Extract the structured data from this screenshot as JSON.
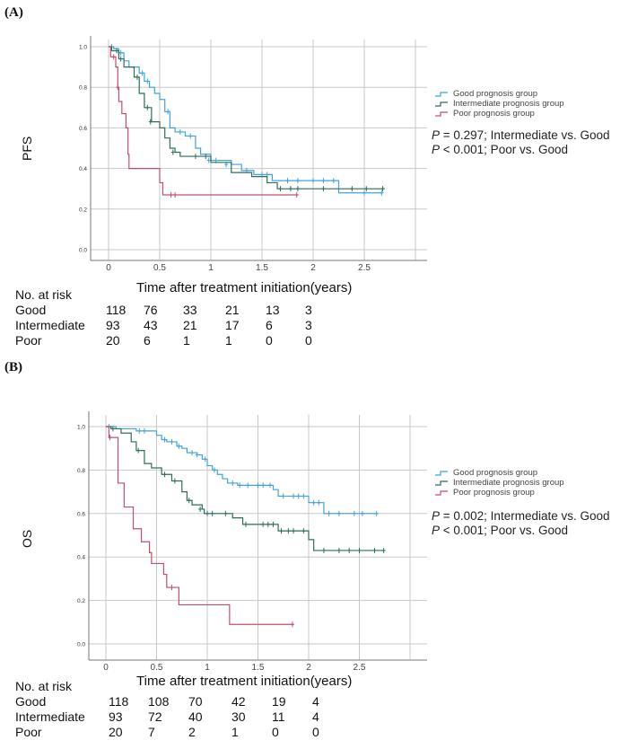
{
  "panels": [
    {
      "label": "(A)"
    },
    {
      "label": "(B)"
    }
  ],
  "chart_data": [
    {
      "type": "line",
      "subtype": "kaplan-meier step",
      "ylabel": "PFS",
      "xlabel": "Time after treatment initiation(years)",
      "xlim": [
        0,
        3
      ],
      "ylim": [
        0,
        1
      ],
      "xticks": [
        "0",
        "0.5",
        "1",
        "1.5",
        "2",
        "2.5"
      ],
      "yticks": [
        "0.0",
        "0.2",
        "0.4",
        "0.6",
        "0.8",
        "1.0"
      ],
      "grid": true,
      "legend_position": "right",
      "series": [
        {
          "name": "Good prognosis group",
          "color": "#3fa2df",
          "steps": [
            [
              0,
              1
            ],
            [
              0.05,
              0.99
            ],
            [
              0.1,
              0.97
            ],
            [
              0.15,
              0.93
            ],
            [
              0.2,
              0.9
            ],
            [
              0.3,
              0.87
            ],
            [
              0.35,
              0.83
            ],
            [
              0.4,
              0.8
            ],
            [
              0.45,
              0.77
            ],
            [
              0.5,
              0.74
            ],
            [
              0.55,
              0.68
            ],
            [
              0.6,
              0.6
            ],
            [
              0.65,
              0.58
            ],
            [
              0.75,
              0.56
            ],
            [
              0.85,
              0.5
            ],
            [
              0.9,
              0.47
            ],
            [
              1.0,
              0.44
            ],
            [
              1.2,
              0.42
            ],
            [
              1.3,
              0.39
            ],
            [
              1.42,
              0.37
            ],
            [
              1.6,
              0.34
            ],
            [
              2.25,
              0.28
            ],
            [
              2.68,
              0.28
            ]
          ],
          "censored": [
            [
              0.03,
              1
            ],
            [
              0.12,
              0.97
            ],
            [
              0.33,
              0.87
            ],
            [
              0.38,
              0.83
            ],
            [
              0.58,
              0.68
            ],
            [
              0.7,
              0.58
            ],
            [
              0.8,
              0.56
            ],
            [
              0.98,
              0.44
            ],
            [
              1.05,
              0.44
            ],
            [
              1.15,
              0.42
            ],
            [
              1.35,
              0.39
            ],
            [
              1.5,
              0.37
            ],
            [
              1.55,
              0.37
            ],
            [
              1.75,
              0.34
            ],
            [
              1.85,
              0.34
            ],
            [
              2.0,
              0.34
            ],
            [
              2.1,
              0.34
            ],
            [
              2.2,
              0.34
            ],
            [
              2.5,
              0.28
            ],
            [
              2.67,
              0.28
            ]
          ]
        },
        {
          "name": "Intermediate prognosis group",
          "color": "#2c6e5c",
          "steps": [
            [
              0,
              1
            ],
            [
              0.03,
              0.98
            ],
            [
              0.1,
              0.94
            ],
            [
              0.15,
              0.9
            ],
            [
              0.25,
              0.85
            ],
            [
              0.3,
              0.77
            ],
            [
              0.35,
              0.7
            ],
            [
              0.42,
              0.63
            ],
            [
              0.5,
              0.6
            ],
            [
              0.55,
              0.55
            ],
            [
              0.6,
              0.5
            ],
            [
              0.65,
              0.48
            ],
            [
              0.7,
              0.46
            ],
            [
              1.0,
              0.43
            ],
            [
              1.2,
              0.38
            ],
            [
              1.4,
              0.36
            ],
            [
              1.55,
              0.33
            ],
            [
              1.65,
              0.3
            ],
            [
              2.7,
              0.3
            ]
          ],
          "censored": [
            [
              0.08,
              0.98
            ],
            [
              0.12,
              0.94
            ],
            [
              0.28,
              0.85
            ],
            [
              0.38,
              0.7
            ],
            [
              0.41,
              0.63
            ],
            [
              0.63,
              0.48
            ],
            [
              0.85,
              0.46
            ],
            [
              0.95,
              0.46
            ],
            [
              1.68,
              0.3
            ],
            [
              1.78,
              0.3
            ],
            [
              1.85,
              0.3
            ],
            [
              2.1,
              0.3
            ],
            [
              2.38,
              0.3
            ],
            [
              2.52,
              0.3
            ],
            [
              2.68,
              0.3
            ]
          ]
        },
        {
          "name": "Poor prognosis group",
          "color": "#c0506a",
          "steps": [
            [
              0,
              1
            ],
            [
              0.02,
              0.95
            ],
            [
              0.07,
              0.9
            ],
            [
              0.09,
              0.8
            ],
            [
              0.1,
              0.73
            ],
            [
              0.13,
              0.67
            ],
            [
              0.17,
              0.6
            ],
            [
              0.19,
              0.47
            ],
            [
              0.2,
              0.4
            ],
            [
              0.5,
              0.33
            ],
            [
              0.53,
              0.27
            ],
            [
              1.85,
              0.27
            ]
          ],
          "censored": [
            [
              0.05,
              0.95
            ],
            [
              0.09,
              0.8
            ],
            [
              0.61,
              0.27
            ],
            [
              0.65,
              0.27
            ],
            [
              1.84,
              0.27
            ]
          ]
        }
      ],
      "annotations": [
        {
          "p_symbol": "P",
          "text": " = 0.297; Intermediate vs. Good"
        },
        {
          "p_symbol": "P",
          "text": " < 0.001; Poor vs. Good"
        }
      ],
      "risk_table": {
        "title": "No. at risk",
        "rows": [
          {
            "group": "Good",
            "values": [
              "118",
              "76",
              "33",
              "21",
              "13",
              "3"
            ]
          },
          {
            "group": "Intermediate",
            "values": [
              "93",
              "43",
              "21",
              "17",
              "6",
              "3"
            ]
          },
          {
            "group": "Poor",
            "values": [
              "20",
              "6",
              "1",
              "1",
              "0",
              "0"
            ]
          }
        ]
      }
    },
    {
      "type": "line",
      "subtype": "kaplan-meier step",
      "ylabel": "OS",
      "xlabel": "Time after treatment initiation(years)",
      "xlim": [
        0,
        3
      ],
      "ylim": [
        0,
        1
      ],
      "xticks": [
        "0",
        "0.5",
        "1",
        "1.5",
        "2",
        "2.5"
      ],
      "yticks": [
        "0.0",
        "0.2",
        "0.4",
        "0.6",
        "0.8",
        "1.0"
      ],
      "grid": true,
      "legend_position": "right",
      "series": [
        {
          "name": "Good prognosis group",
          "color": "#3fa2df",
          "steps": [
            [
              0,
              1
            ],
            [
              0.1,
              0.99
            ],
            [
              0.3,
              0.98
            ],
            [
              0.5,
              0.96
            ],
            [
              0.55,
              0.94
            ],
            [
              0.6,
              0.93
            ],
            [
              0.7,
              0.91
            ],
            [
              0.75,
              0.9
            ],
            [
              0.8,
              0.88
            ],
            [
              0.9,
              0.87
            ],
            [
              0.95,
              0.85
            ],
            [
              1.0,
              0.82
            ],
            [
              1.05,
              0.8
            ],
            [
              1.1,
              0.78
            ],
            [
              1.15,
              0.76
            ],
            [
              1.2,
              0.74
            ],
            [
              1.3,
              0.73
            ],
            [
              1.65,
              0.71
            ],
            [
              1.7,
              0.68
            ],
            [
              2.0,
              0.65
            ],
            [
              2.15,
              0.6
            ],
            [
              2.68,
              0.6
            ]
          ],
          "censored": [
            [
              0.03,
              1
            ],
            [
              0.33,
              0.98
            ],
            [
              0.38,
              0.98
            ],
            [
              0.58,
              0.94
            ],
            [
              0.65,
              0.93
            ],
            [
              0.72,
              0.91
            ],
            [
              0.85,
              0.88
            ],
            [
              0.9,
              0.87
            ],
            [
              0.98,
              0.85
            ],
            [
              1.07,
              0.8
            ],
            [
              1.25,
              0.74
            ],
            [
              1.32,
              0.73
            ],
            [
              1.4,
              0.73
            ],
            [
              1.5,
              0.73
            ],
            [
              1.55,
              0.73
            ],
            [
              1.62,
              0.73
            ],
            [
              1.75,
              0.68
            ],
            [
              1.85,
              0.68
            ],
            [
              1.9,
              0.68
            ],
            [
              1.95,
              0.68
            ],
            [
              2.05,
              0.65
            ],
            [
              2.1,
              0.65
            ],
            [
              2.2,
              0.6
            ],
            [
              2.3,
              0.6
            ],
            [
              2.45,
              0.6
            ],
            [
              2.53,
              0.6
            ],
            [
              2.67,
              0.6
            ]
          ]
        },
        {
          "name": "Intermediate prognosis group",
          "color": "#2c6e5c",
          "steps": [
            [
              0,
              1
            ],
            [
              0.05,
              0.99
            ],
            [
              0.15,
              0.97
            ],
            [
              0.25,
              0.93
            ],
            [
              0.3,
              0.89
            ],
            [
              0.38,
              0.83
            ],
            [
              0.45,
              0.81
            ],
            [
              0.55,
              0.78
            ],
            [
              0.65,
              0.75
            ],
            [
              0.75,
              0.7
            ],
            [
              0.8,
              0.66
            ],
            [
              0.85,
              0.64
            ],
            [
              0.95,
              0.62
            ],
            [
              0.97,
              0.6
            ],
            [
              1.25,
              0.58
            ],
            [
              1.35,
              0.55
            ],
            [
              1.7,
              0.52
            ],
            [
              2.0,
              0.48
            ],
            [
              2.05,
              0.43
            ],
            [
              2.75,
              0.43
            ]
          ],
          "censored": [
            [
              0.07,
              0.99
            ],
            [
              0.32,
              0.89
            ],
            [
              0.58,
              0.78
            ],
            [
              0.68,
              0.75
            ],
            [
              0.82,
              0.66
            ],
            [
              0.93,
              0.62
            ],
            [
              1.0,
              0.6
            ],
            [
              1.05,
              0.6
            ],
            [
              1.18,
              0.6
            ],
            [
              1.38,
              0.55
            ],
            [
              1.55,
              0.55
            ],
            [
              1.6,
              0.55
            ],
            [
              1.65,
              0.55
            ],
            [
              1.73,
              0.52
            ],
            [
              1.8,
              0.52
            ],
            [
              1.85,
              0.52
            ],
            [
              1.95,
              0.52
            ],
            [
              2.15,
              0.43
            ],
            [
              2.3,
              0.43
            ],
            [
              2.4,
              0.43
            ],
            [
              2.5,
              0.43
            ],
            [
              2.65,
              0.43
            ],
            [
              2.74,
              0.43
            ]
          ]
        },
        {
          "name": "Poor prognosis group",
          "color": "#c0506a",
          "steps": [
            [
              0,
              1
            ],
            [
              0.03,
              0.95
            ],
            [
              0.12,
              0.74
            ],
            [
              0.18,
              0.63
            ],
            [
              0.27,
              0.53
            ],
            [
              0.35,
              0.47
            ],
            [
              0.43,
              0.42
            ],
            [
              0.45,
              0.37
            ],
            [
              0.57,
              0.32
            ],
            [
              0.6,
              0.26
            ],
            [
              0.72,
              0.18
            ],
            [
              1.22,
              0.09
            ],
            [
              1.85,
              0.09
            ]
          ],
          "censored": [
            [
              0.04,
              0.95
            ],
            [
              0.65,
              0.26
            ],
            [
              1.84,
              0.09
            ]
          ]
        }
      ],
      "annotations": [
        {
          "p_symbol": "P",
          "text": " = 0.002; Intermediate vs. Good"
        },
        {
          "p_symbol": "P",
          "text": " < 0.001; Poor vs. Good"
        }
      ],
      "risk_table": {
        "title": "No. at risk",
        "rows": [
          {
            "group": "Good",
            "values": [
              "118",
              "108",
              "70",
              "42",
              "19",
              "4"
            ]
          },
          {
            "group": "Intermediate",
            "values": [
              "93",
              "72",
              "40",
              "30",
              "11",
              "4"
            ]
          },
          {
            "group": "Poor",
            "values": [
              "20",
              "7",
              "2",
              "1",
              "0",
              "0"
            ]
          }
        ]
      }
    }
  ]
}
